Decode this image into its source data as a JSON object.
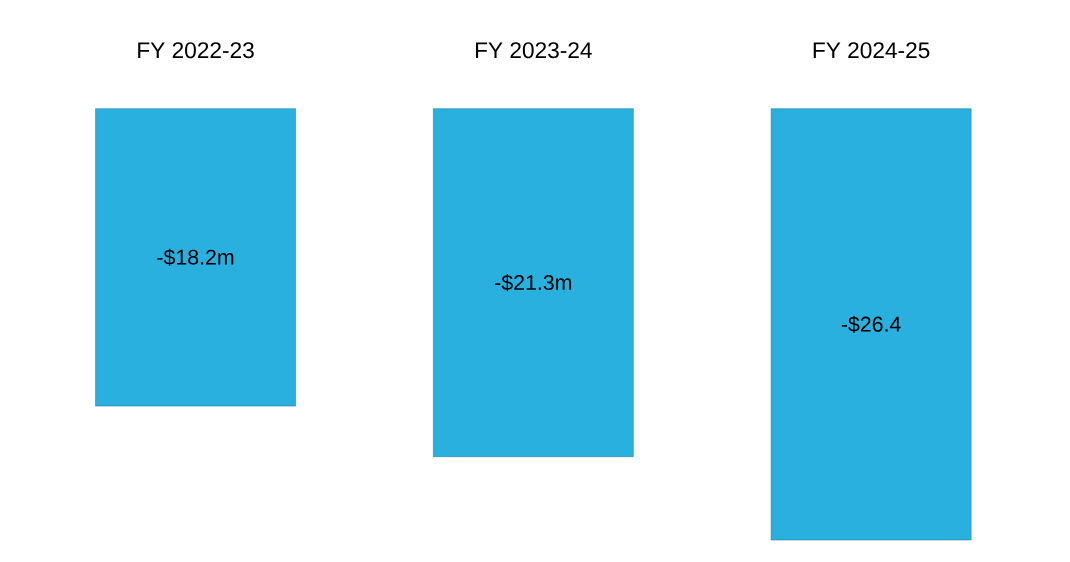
{
  "chart_data": {
    "type": "bar",
    "categories": [
      "FY 2022-23",
      "FY 2023-24",
      "FY 2024-25"
    ],
    "values": [
      -18.2,
      -21.3,
      -26.4
    ],
    "value_labels": [
      "-$18.2m",
      "-$21.3m",
      "-$26.4"
    ],
    "color": "#29b0de"
  }
}
